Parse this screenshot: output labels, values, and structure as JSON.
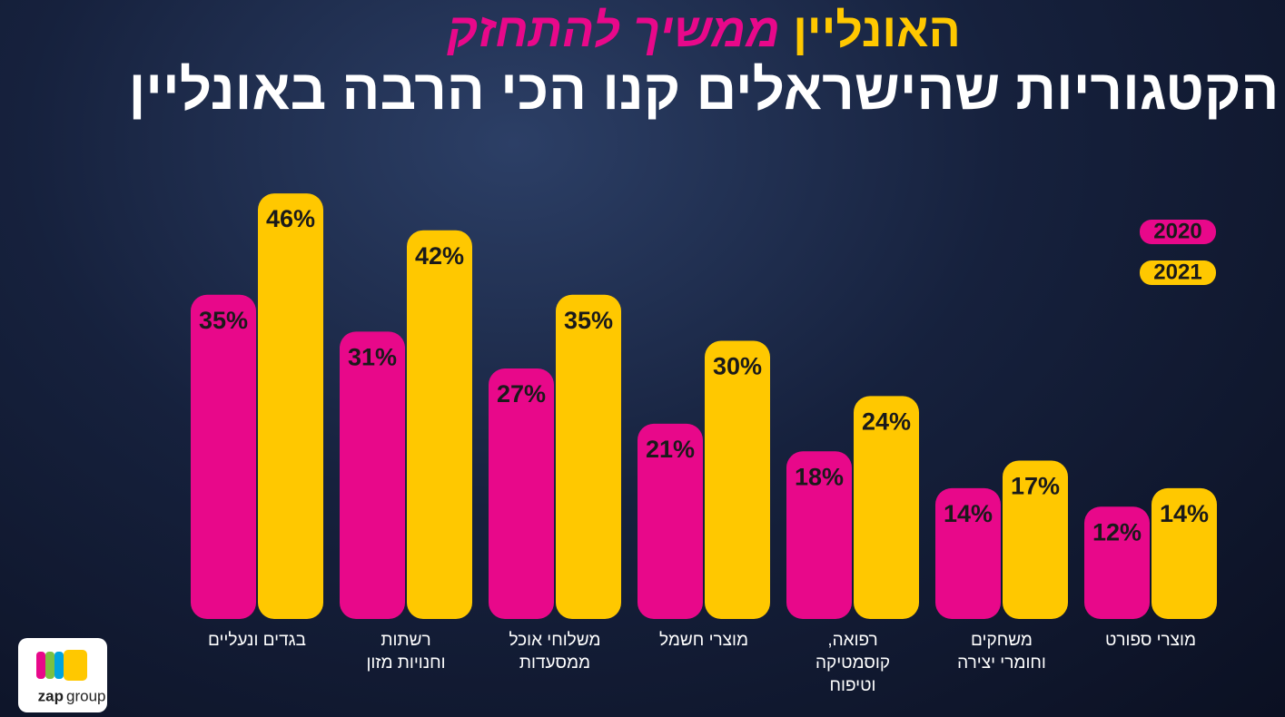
{
  "chart_data": {
    "type": "bar",
    "title": {
      "highlight": "האונליין",
      "rest": "ממשיך להתחזק"
    },
    "subtitle": "הקטגוריות שהישראלים קנו הכי הרבה באונליין",
    "categories": [
      [
        "בגדים ונעליים"
      ],
      [
        "רשתות",
        "וחנויות מזון"
      ],
      [
        "משלוחי אוכל",
        "ממסעדות"
      ],
      [
        "מוצרי חשמל"
      ],
      [
        "רפואה,",
        "קוסמטיקה",
        "וטיפוח"
      ],
      [
        "משחקים",
        "וחומרי יצירה"
      ],
      [
        "מוצרי ספורט"
      ]
    ],
    "series": [
      {
        "name": "2020",
        "color": "#e8088a",
        "values": [
          35,
          31,
          27,
          21,
          18,
          14,
          12
        ],
        "value_labels": [
          "35%",
          "31%",
          "27%",
          "21%",
          "18%",
          "14%",
          "12%"
        ]
      },
      {
        "name": "2021",
        "color": "#ffc800",
        "values": [
          46,
          42,
          35,
          30,
          24,
          17,
          14
        ],
        "value_labels": [
          "46%",
          "42%",
          "35%",
          "30%",
          "24%",
          "17%",
          "14%"
        ]
      }
    ]
  },
  "logo": {
    "brand": "zap",
    "suffix": "group"
  }
}
